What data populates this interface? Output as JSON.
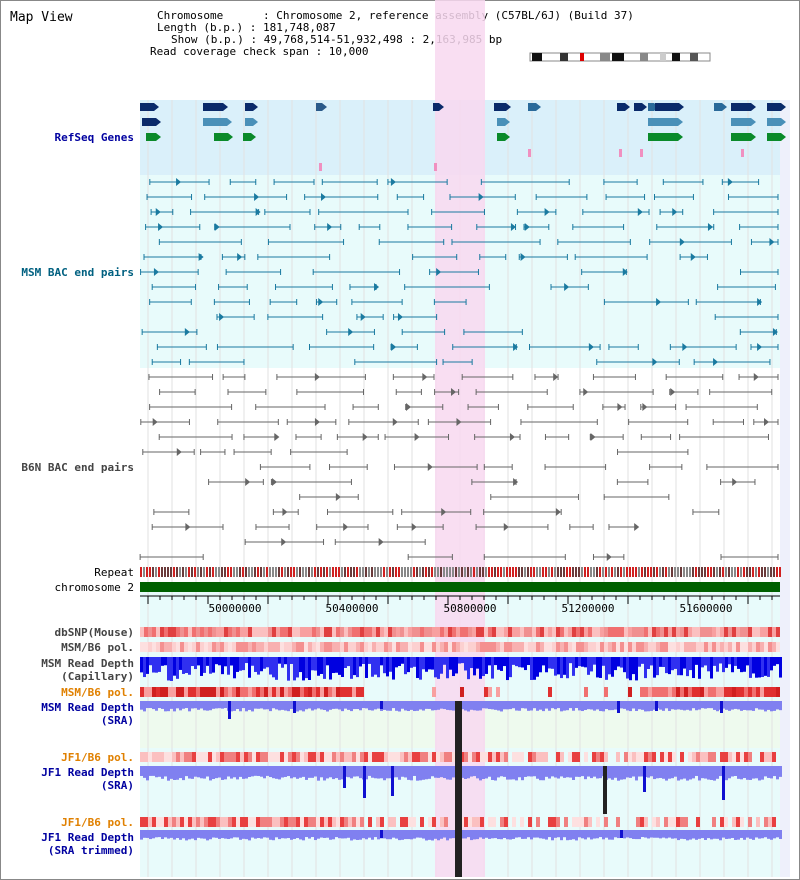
{
  "page": {
    "title": "Map View",
    "info": {
      "chromosome": "Chromosome      : Chromosome 2, reference assembly (C57BL/6J) (Build 37)",
      "length": "Length (b.p.) : 181,748,087",
      "show": "Show (b.p.) : 49,768,514-51,932,498 : 2,163,985 bp",
      "span": "Read coverage check span : 10,000"
    }
  },
  "labels": {
    "refseq": "RefSeq Genes",
    "msm_bac": "MSM BAC end pairs",
    "b6n_bac": "B6N BAC end pairs",
    "repeat": "Repeat",
    "chromosome": "chromosome 2",
    "dbsnp": "dbSNP(Mouse)",
    "msm_b6_pol_1": "MSM/B6 pol.",
    "msm_read_cap": "MSM Read Depth\n(Capillary)",
    "msm_b6_pol_2": "MSM/B6 pol.",
    "msm_read_sra": "MSM Read Depth\n(SRA)",
    "jf1_b6_pol_1": "JF1/B6 pol.",
    "jf1_read_sra": "JF1 Read Depth\n(SRA)",
    "jf1_b6_pol_2": "JF1/B6 pol.",
    "jf1_read_trim": "JF1 Read Depth\n(SRA trimmed)"
  },
  "axis": {
    "ticks": [
      "50000000",
      "50400000",
      "50800000",
      "51200000",
      "51600000"
    ]
  },
  "colors": {
    "refseq_label": "#0000a0",
    "msm_bac_label": "#006080",
    "b6n_bac_label": "#444444",
    "pol_label_orange": "#e08000",
    "read_label_blue": "#0000a0",
    "highlight": "#f8d8f0",
    "chromosome_band": "#006000"
  }
}
